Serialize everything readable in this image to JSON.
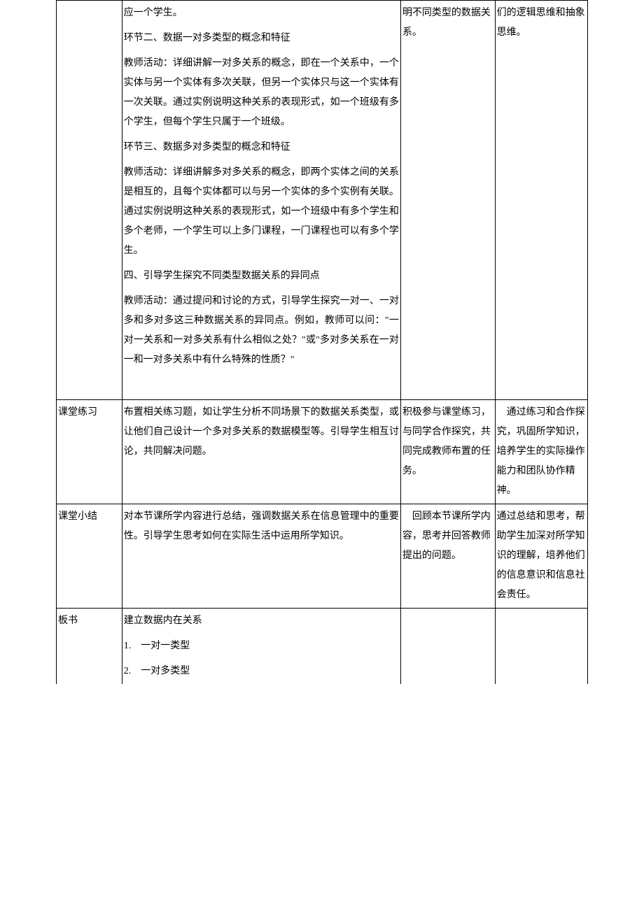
{
  "rows": [
    {
      "label": "",
      "main_paras": [
        "应一个学生。",
        "环节二、数据一对多类型的概念和特征",
        "教师活动：详细讲解一对多关系的概念，即在一个关系中，一个实体与另一个实体有多次关联，但另一个实体只与这一个实体有一次关联。通过实例说明这种关系的表现形式，如一个班级有多个学生，但每个学生只属于一个班级。",
        "环节三、数据多对多类型的概念和特征",
        "教师活动：详细讲解多对多关系的概念，即两个实体之间的关系是相互的，且每个实体都可以与另一个实体的多个实例有关联。通过实例说明这种关系的表现形式，如一个班级中有多个学生和多个老师，一个学生可以上多门课程，一门课程也可以有多个学生。",
        "四、引导学生探究不同类型数据关系的异同点",
        "教师活动：通过提问和讨论的方式，引导学生探究一对一、一对多和多对多这三种数据关系的异同点。例如，教师可以问：\"一对一关系和一对多关系有什么相似之处？\"或\"多对多关系在一对一和一对多关系中有什么特殊的性质？\""
      ],
      "c3": "明不同类型的数据关系。",
      "c4": "们的逻辑思维和抽象思维。"
    },
    {
      "label": "课堂练习",
      "main_paras": [
        "布置相关练习题，如让学生分析不同场景下的数据关系类型，或让他们自己设计一个多对多关系的数据模型等。引导学生相互讨论，共同解决问题。"
      ],
      "c3": "积极参与课堂练习，与同学合作探究，共同完成教师布置的任务。",
      "c4": "　通过练习和合作探究，巩固所学知识，培养学生的实际操作能力和团队协作精神。"
    },
    {
      "label": "课堂小结",
      "main_paras": [
        "对本节课所学内容进行总结，强调数据关系在信息管理中的重要性。引导学生思考如何在实际生活中运用所学知识。"
      ],
      "c3": "　回顾本节课所学内容，思考并回答教师提出的问题。",
      "c4": "通过总结和思考，帮助学生加深对所学知识的理解，培养他们的信息意识和信息社会责任。"
    },
    {
      "label": "板书",
      "main_paras": [
        "建立数据内在关系",
        "1.　一对一类型",
        "2.　一对多类型"
      ],
      "c3": "",
      "c4": ""
    }
  ]
}
